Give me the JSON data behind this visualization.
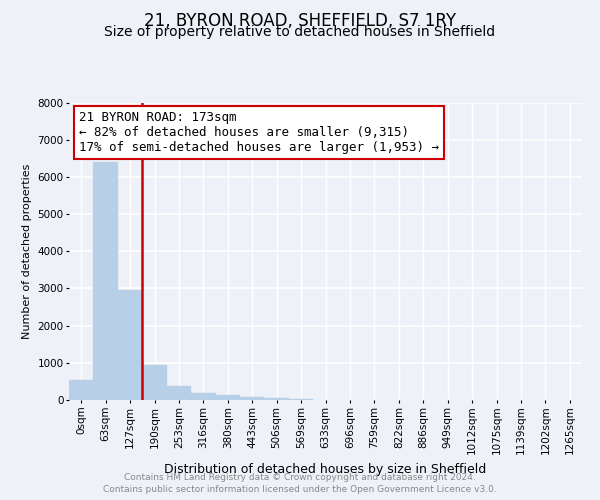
{
  "title": "21, BYRON ROAD, SHEFFIELD, S7 1RY",
  "subtitle": "Size of property relative to detached houses in Sheffield",
  "xlabel": "Distribution of detached houses by size in Sheffield",
  "ylabel": "Number of detached properties",
  "footnote1": "Contains HM Land Registry data © Crown copyright and database right 2024.",
  "footnote2": "Contains public sector information licensed under the Open Government Licence v3.0.",
  "annotation_line1": "21 BYRON ROAD: 173sqm",
  "annotation_line2": "← 82% of detached houses are smaller (9,315)",
  "annotation_line3": "17% of semi-detached houses are larger (1,953) →",
  "bar_color": "#b8cfe8",
  "line_color": "#cc0000",
  "categories": [
    "0sqm",
    "63sqm",
    "127sqm",
    "190sqm",
    "253sqm",
    "316sqm",
    "380sqm",
    "443sqm",
    "506sqm",
    "569sqm",
    "633sqm",
    "696sqm",
    "759sqm",
    "822sqm",
    "886sqm",
    "949sqm",
    "1012sqm",
    "1075sqm",
    "1139sqm",
    "1202sqm",
    "1265sqm"
  ],
  "values": [
    550,
    6400,
    2950,
    950,
    380,
    175,
    125,
    80,
    50,
    20,
    10,
    5,
    3,
    2,
    2,
    1,
    1,
    1,
    1,
    1,
    0
  ],
  "ylim": [
    0,
    8000
  ],
  "yticks": [
    0,
    1000,
    2000,
    3000,
    4000,
    5000,
    6000,
    7000,
    8000
  ],
  "background_color": "#eef2f8",
  "grid_color": "#ffffff",
  "title_fontsize": 12,
  "subtitle_fontsize": 10,
  "annotation_fontsize": 9,
  "ylabel_fontsize": 8,
  "xlabel_fontsize": 9,
  "footnote_fontsize": 6.5,
  "tick_fontsize": 7.5,
  "prop_line_index": 3
}
